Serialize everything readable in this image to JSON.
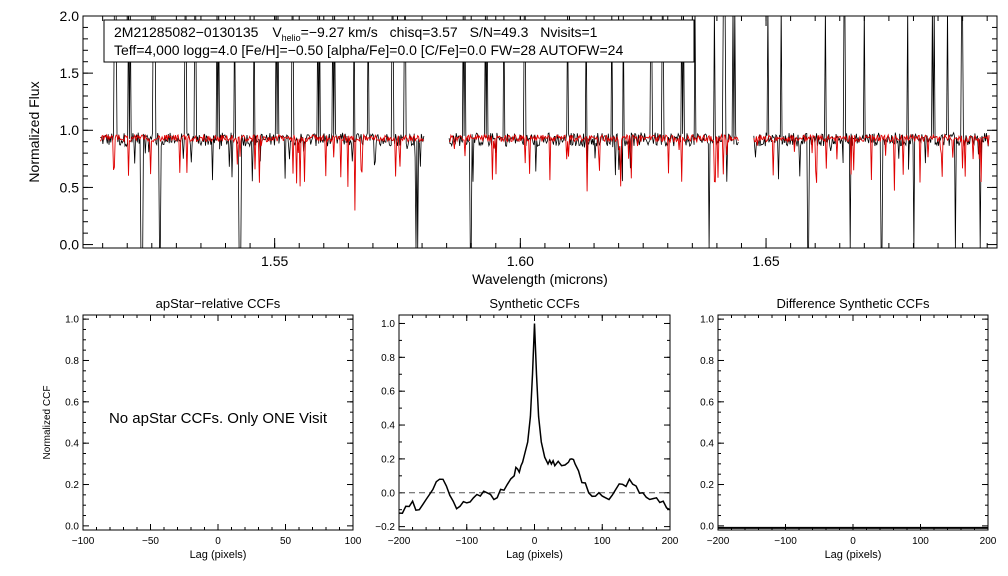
{
  "header": {
    "star_id": "2M21285082−0130135",
    "vhelio_label": "V",
    "vhelio_sub": "helio",
    "vhelio_value": "=−9.27 km/s",
    "chisq": "chisq=3.57",
    "snr": "S/N=49.3",
    "nvisits": "Nvisits=1",
    "params_line": "Teff=4,000 logg=4.0 [Fe/H]=−0.50 [alpha/Fe]=0.0 [C/Fe]=0.0 FW=28 AUTOFW=24"
  },
  "colors": {
    "observed": "#000000",
    "model": "#e00000",
    "zero_line": "#555555"
  },
  "chart_data": [
    {
      "id": "spectrum",
      "type": "line",
      "title": "",
      "xlabel": "Wavelength (microns)",
      "ylabel": "Normalized Flux",
      "xlim": [
        1.511,
        1.697
      ],
      "ylim": [
        -0.03,
        2.0
      ],
      "xticks": [
        1.55,
        1.6,
        1.65
      ],
      "xtick_labels": [
        "1.55",
        "1.60",
        "1.65"
      ],
      "yticks": [
        0.0,
        0.5,
        1.0,
        1.5,
        2.0
      ],
      "ytick_labels": [
        "0.0",
        "0.5",
        "1.0",
        "1.5",
        "2.0"
      ],
      "chip_ranges": [
        [
          1.5145,
          1.5805
        ],
        [
          1.5855,
          1.6445
        ],
        [
          1.6475,
          1.6955
        ]
      ],
      "series": [
        {
          "name": "observed spectrum",
          "baseline": 0.92,
          "scatter": 0.06,
          "color_key": "observed"
        },
        {
          "name": "synthetic model",
          "baseline": 0.93,
          "scatter": 0.03,
          "color_key": "model"
        }
      ],
      "spikes": [
        1.5175,
        1.5205,
        1.5255,
        1.5285,
        1.532,
        1.534,
        1.5385,
        1.542,
        1.546,
        1.5505,
        1.5535,
        1.559,
        1.562,
        1.566,
        1.569,
        1.574,
        1.5765,
        1.5885,
        1.593,
        1.5965,
        1.601,
        1.606,
        1.6095,
        1.6135,
        1.6185,
        1.621,
        1.6265,
        1.629,
        1.633,
        1.6355,
        1.6395,
        1.6415,
        1.6435,
        1.6505,
        1.653,
        1.6575,
        1.662,
        1.666,
        1.67,
        1.674,
        1.679,
        1.684,
        1.687,
        1.69,
        1.693
      ],
      "dips": [
        1.523,
        1.5263,
        1.5325,
        1.543,
        1.572,
        1.579,
        1.5855,
        1.59,
        1.6385,
        1.6495,
        1.6585,
        1.667,
        1.6735,
        1.68,
        1.6885,
        1.6935
      ]
    },
    {
      "id": "apstar_ccf",
      "type": "line",
      "title": "apStar−relative CCFs",
      "xlabel": "Lag (pixels)",
      "ylabel": "Normalized CCF",
      "xlim": [
        -100,
        100
      ],
      "ylim": [
        -0.02,
        1.02
      ],
      "xticks": [
        -100,
        -50,
        0,
        50,
        100
      ],
      "xtick_labels": [
        "−100",
        "−50",
        "0",
        "50",
        "100"
      ],
      "yticks": [
        0.0,
        0.2,
        0.4,
        0.6,
        0.8,
        1.0
      ],
      "ytick_labels": [
        "0.0",
        "0.2",
        "0.4",
        "0.6",
        "0.8",
        "1.0"
      ],
      "annotation": "No apStar CCFs.  Only ONE Visit",
      "series": []
    },
    {
      "id": "synthetic_ccf",
      "type": "line",
      "title": "Synthetic CCFs",
      "xlabel": "Lag (pixels)",
      "ylabel": "",
      "xlim": [
        -200,
        200
      ],
      "ylim": [
        -0.22,
        1.05
      ],
      "xticks": [
        -200,
        -100,
        0,
        100,
        200
      ],
      "xtick_labels": [
        "−200",
        "−100",
        "0",
        "100",
        "200"
      ],
      "yticks": [
        -0.2,
        0.0,
        0.2,
        0.4,
        0.6,
        0.8,
        1.0
      ],
      "ytick_labels": [
        "−0.2",
        "0.0",
        "0.2",
        "0.4",
        "0.6",
        "0.8",
        "1.0"
      ],
      "reference_line": 0.0,
      "series": [
        {
          "name": "synthetic CCF",
          "x": [
            -200,
            -190,
            -180,
            -170,
            -160,
            -150,
            -140,
            -130,
            -120,
            -110,
            -100,
            -90,
            -80,
            -70,
            -60,
            -50,
            -40,
            -30,
            -25,
            -20,
            -15,
            -10,
            -6,
            -3,
            0,
            3,
            6,
            10,
            15,
            20,
            25,
            30,
            40,
            50,
            55,
            60,
            70,
            80,
            90,
            100,
            110,
            120,
            130,
            140,
            150,
            160,
            170,
            180,
            190,
            200
          ],
          "y": [
            -0.12,
            -0.08,
            -0.05,
            -0.1,
            -0.04,
            0.02,
            0.08,
            0.04,
            -0.05,
            -0.08,
            -0.06,
            -0.03,
            -0.02,
            0.0,
            -0.04,
            0.02,
            0.05,
            0.1,
            0.14,
            0.16,
            0.22,
            0.3,
            0.45,
            0.7,
            1.0,
            0.7,
            0.45,
            0.3,
            0.21,
            0.17,
            0.17,
            0.16,
            0.16,
            0.18,
            0.2,
            0.17,
            0.06,
            0.0,
            -0.02,
            -0.02,
            -0.04,
            0.02,
            0.05,
            0.08,
            0.04,
            0.0,
            -0.04,
            -0.03,
            -0.05,
            -0.1
          ]
        }
      ]
    },
    {
      "id": "difference_ccf",
      "type": "line",
      "title": "Difference Synthetic CCFs",
      "xlabel": "Lag (pixels)",
      "ylabel": "",
      "xlim": [
        -200,
        200
      ],
      "ylim": [
        -0.02,
        1.02
      ],
      "xticks": [
        -200,
        -100,
        0,
        100,
        200
      ],
      "xtick_labels": [
        "−200",
        "−100",
        "0",
        "100",
        "200"
      ],
      "yticks": [
        0.0,
        0.2,
        0.4,
        0.6,
        0.8,
        1.0
      ],
      "ytick_labels": [
        "0.0",
        "0.2",
        "0.4",
        "0.6",
        "0.8",
        "1.0"
      ],
      "series": []
    }
  ]
}
